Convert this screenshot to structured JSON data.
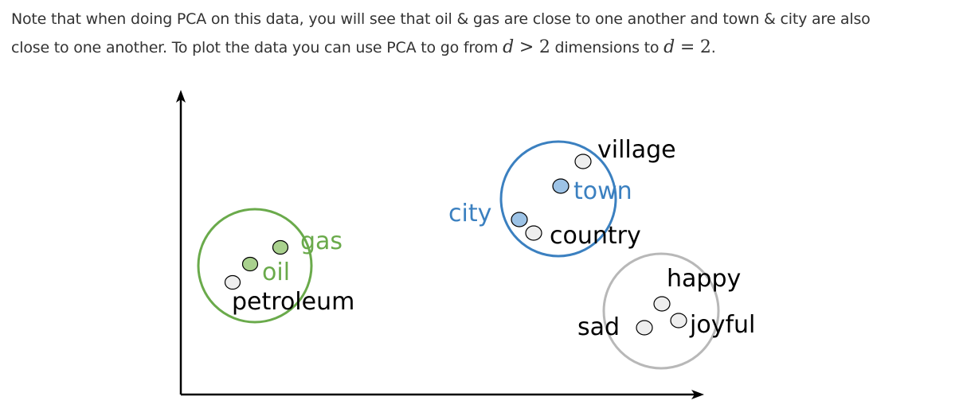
{
  "text": {
    "line1": "Note that when doing PCA on this data, you will see that oil & gas are close to one another and town & city are also",
    "line2_before": "close to one another. To plot the data you can use PCA to go from ",
    "math1_var": "d",
    "math1_op": ">",
    "math1_num": "2",
    "line2_mid": " dimensions to ",
    "math2_var": "d",
    "math2_op": "=",
    "math2_num": "2",
    "line2_end": "."
  },
  "diagram": {
    "labels": {
      "village": "village",
      "town": "town",
      "city": "city",
      "country": "country",
      "gas": "gas",
      "oil": "oil",
      "petroleum": "petroleum",
      "happy": "happy",
      "sad": "sad",
      "joyful": "joyful"
    },
    "colors": {
      "green": "#6aaa4b",
      "green_fill": "#a9d18e",
      "blue": "#3b80c0",
      "blue_fill": "#9dc3e6",
      "gray": "#b8b8b8",
      "gray_fill": "#eeeeee",
      "black": "#000000"
    }
  }
}
